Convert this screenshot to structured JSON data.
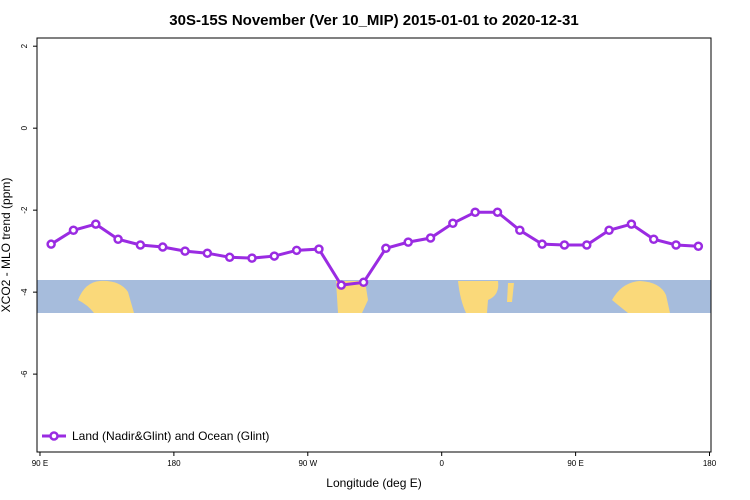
{
  "chart_data": {
    "type": "line",
    "title": "30S-15S November (Ver 10_MIP)   2015-01-01 to 2020-12-31",
    "xlabel": "Longitude (deg E)",
    "ylabel": "XCO2 - MLO trend (ppm)",
    "x": [
      97.5,
      112.5,
      127.5,
      142.5,
      157.5,
      172.5,
      187.5,
      202.5,
      217.5,
      232.5,
      247.5,
      262.5,
      277.5,
      292.5,
      307.5,
      322.5,
      337.5,
      352.5,
      367.5,
      382.5,
      397.5,
      412.5,
      427.5,
      442.5,
      457.5,
      472.5,
      487.5,
      502.5,
      517.5,
      532.5
    ],
    "series": [
      {
        "name": "Land (Nadir&Glint) and Ocean (Glint)",
        "color": "#9a2be2",
        "values": [
          -2.83,
          -2.49,
          -2.34,
          -2.71,
          -2.85,
          -2.9,
          -3.0,
          -3.05,
          -3.15,
          -3.17,
          -3.12,
          -2.98,
          -2.95,
          -3.83,
          -3.76,
          -2.93,
          -2.78,
          -2.68,
          -2.32,
          -2.05,
          -2.05,
          -2.49,
          -2.83,
          -2.85,
          -2.85,
          -2.49,
          -2.34,
          -2.71,
          -2.85,
          -2.88
        ]
      }
    ],
    "xlim": [
      88,
      541
    ],
    "xticks": [
      {
        "value": 90,
        "label": "90 E"
      },
      {
        "value": 180,
        "label": "180"
      },
      {
        "value": 270,
        "label": "90 W"
      },
      {
        "value": 360,
        "label": "0"
      },
      {
        "value": 450,
        "label": "90 E"
      },
      {
        "value": 540,
        "label": "180"
      }
    ],
    "ylim": [
      -7.9,
      2.2
    ],
    "yticks": [
      2,
      0,
      -2,
      -4,
      -6
    ],
    "legend": "bottom-left"
  }
}
